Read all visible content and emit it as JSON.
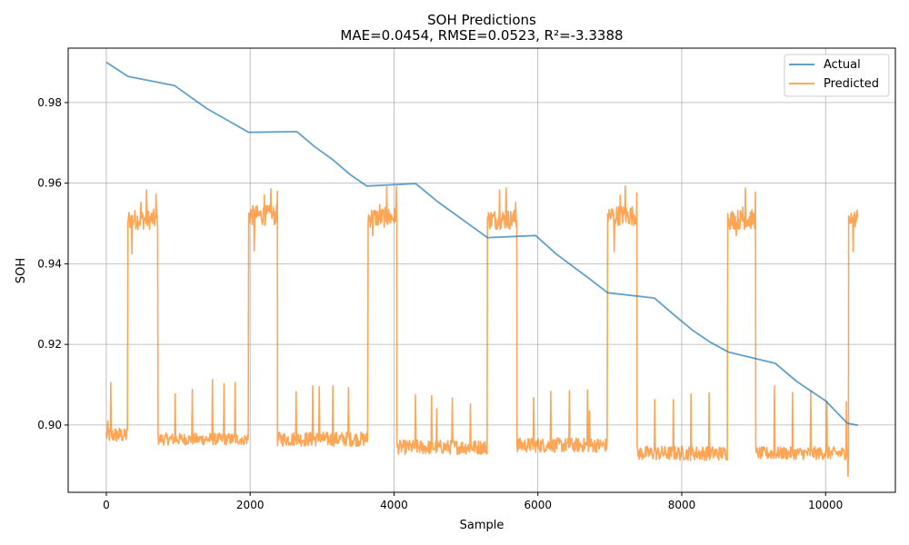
{
  "chart_data": {
    "type": "line",
    "title": "SOH Predictions",
    "subtitle": "MAE=0.0454, RMSE=0.0523, R²=-3.3388",
    "xlabel": "Sample",
    "ylabel": "SOH",
    "xlim": [
      -530,
      10970
    ],
    "ylim": [
      0.8833,
      0.9935
    ],
    "xticks": [
      0,
      2000,
      4000,
      6000,
      8000,
      10000
    ],
    "yticks": [
      0.9,
      0.92,
      0.94,
      0.96,
      0.98
    ],
    "xtick_labels": [
      "0",
      "2000",
      "4000",
      "6000",
      "8000",
      "10000"
    ],
    "ytick_labels": [
      "0.90",
      "0.92",
      "0.94",
      "0.96",
      "0.98"
    ],
    "grid": true,
    "legend_position": "top-right",
    "series": [
      {
        "name": "Actual",
        "color": "#1f77b4",
        "points": [
          [
            0,
            0.99
          ],
          [
            300,
            0.9865
          ],
          [
            950,
            0.9842
          ],
          [
            1400,
            0.9785
          ],
          [
            1980,
            0.9726
          ],
          [
            2650,
            0.9728
          ],
          [
            2900,
            0.969
          ],
          [
            3150,
            0.9658
          ],
          [
            3400,
            0.962
          ],
          [
            3620,
            0.9593
          ],
          [
            4300,
            0.9599
          ],
          [
            4600,
            0.9555
          ],
          [
            4950,
            0.951
          ],
          [
            5300,
            0.9465
          ],
          [
            5970,
            0.947
          ],
          [
            6250,
            0.9425
          ],
          [
            6700,
            0.9365
          ],
          [
            6970,
            0.9328
          ],
          [
            7620,
            0.9315
          ],
          [
            7900,
            0.9272
          ],
          [
            8150,
            0.9235
          ],
          [
            8400,
            0.9205
          ],
          [
            8650,
            0.9181
          ],
          [
            9300,
            0.9153
          ],
          [
            9600,
            0.9108
          ],
          [
            10000,
            0.906
          ],
          [
            10300,
            0.9005
          ],
          [
            10450,
            0.8999
          ]
        ]
      },
      {
        "name": "Predicted",
        "color": "#ff7f0e",
        "segments": [
          {
            "x0": 0,
            "x1": 300,
            "level": 0.8975,
            "noise": 0.002,
            "spikes": [
              [
                20,
                0.901
              ],
              [
                60,
                0.9105
              ],
              [
                150,
                0.898
              ],
              [
                250,
                0.899
              ]
            ]
          },
          {
            "x0": 300,
            "x1": 720,
            "level": 0.951,
            "noise": 0.0025,
            "spikes": [
              [
                360,
                0.9425
              ],
              [
                480,
                0.9553
              ],
              [
                560,
                0.9583
              ],
              [
                690,
                0.9573
              ]
            ]
          },
          {
            "x0": 720,
            "x1": 1980,
            "level": 0.8965,
            "noise": 0.0015,
            "spikes": [
              [
                960,
                0.9077
              ],
              [
                1200,
                0.9088
              ],
              [
                1280,
                0.897
              ],
              [
                1480,
                0.9113
              ],
              [
                1640,
                0.9102
              ],
              [
                1790,
                0.9105
              ],
              [
                1900,
                0.896
              ]
            ]
          },
          {
            "x0": 1980,
            "x1": 2380,
            "level": 0.952,
            "noise": 0.0025,
            "spikes": [
              [
                2060,
                0.9432
              ],
              [
                2200,
                0.9571
              ],
              [
                2290,
                0.9586
              ],
              [
                2380,
                0.958
              ]
            ]
          },
          {
            "x0": 2380,
            "x1": 3640,
            "level": 0.8965,
            "noise": 0.0018,
            "spikes": [
              [
                2640,
                0.9083
              ],
              [
                2870,
                0.9097
              ],
              [
                2960,
                0.9095
              ],
              [
                3150,
                0.9097
              ],
              [
                3370,
                0.9093
              ],
              [
                3640,
                0.89
              ]
            ]
          },
          {
            "x0": 3640,
            "x1": 4040,
            "level": 0.9515,
            "noise": 0.0025,
            "spikes": [
              [
                3700,
                0.947
              ],
              [
                3800,
                0.9547
              ],
              [
                3900,
                0.9591
              ],
              [
                4030,
                0.9592
              ]
            ]
          },
          {
            "x0": 4040,
            "x1": 5300,
            "level": 0.8945,
            "noise": 0.0018,
            "spikes": [
              [
                4300,
                0.9075
              ],
              [
                4520,
                0.9073
              ],
              [
                4590,
                0.904
              ],
              [
                4810,
                0.9067
              ],
              [
                5060,
                0.9052
              ],
              [
                5300,
                0.89
              ]
            ]
          },
          {
            "x0": 5300,
            "x1": 5710,
            "level": 0.951,
            "noise": 0.0025,
            "spikes": [
              [
                5340,
                0.952
              ],
              [
                5470,
                0.9583
              ],
              [
                5560,
                0.9588
              ],
              [
                5690,
                0.9553
              ]
            ]
          },
          {
            "x0": 5710,
            "x1": 6970,
            "level": 0.895,
            "noise": 0.0018,
            "spikes": [
              [
                5940,
                0.9068
              ],
              [
                6180,
                0.9083
              ],
              [
                6440,
                0.9085
              ],
              [
                6690,
                0.9087
              ],
              [
                6720,
                0.9035
              ]
            ]
          },
          {
            "x0": 6970,
            "x1": 7380,
            "level": 0.952,
            "noise": 0.0025,
            "spikes": [
              [
                7060,
                0.943
              ],
              [
                7150,
                0.957
              ],
              [
                7220,
                0.9593
              ],
              [
                7380,
                0.9576
              ]
            ]
          },
          {
            "x0": 7380,
            "x1": 8640,
            "level": 0.893,
            "noise": 0.0018,
            "spikes": [
              [
                7620,
                0.9063
              ],
              [
                7880,
                0.9063
              ],
              [
                8130,
                0.9077
              ],
              [
                8380,
                0.908
              ],
              [
                8640,
                0.896
              ]
            ]
          },
          {
            "x0": 8640,
            "x1": 9030,
            "level": 0.951,
            "noise": 0.0025,
            "spikes": [
              [
                8760,
                0.947
              ],
              [
                8850,
                0.9541
              ],
              [
                8880,
                0.9588
              ],
              [
                9020,
                0.9578
              ]
            ]
          },
          {
            "x0": 9030,
            "x1": 10320,
            "level": 0.893,
            "noise": 0.0016,
            "spikes": [
              [
                9290,
                0.9097
              ],
              [
                9540,
                0.9081
              ],
              [
                9790,
                0.9085
              ],
              [
                10020,
                0.906
              ],
              [
                10290,
                0.9058
              ],
              [
                10310,
                0.8873
              ]
            ]
          },
          {
            "x0": 10320,
            "x1": 10450,
            "level": 0.951,
            "noise": 0.0018,
            "spikes": [
              [
                10380,
                0.943
              ],
              [
                10440,
                0.9533
              ]
            ]
          }
        ]
      }
    ]
  }
}
